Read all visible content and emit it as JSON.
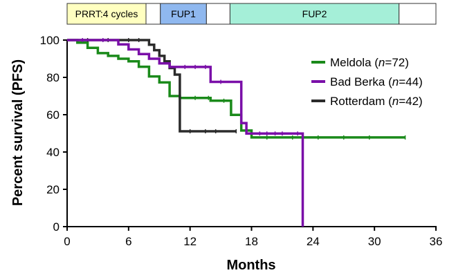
{
  "chart_data": {
    "type": "line",
    "xlabel": "Months",
    "ylabel": "Percent survival (PFS)",
    "xlim": [
      0,
      36
    ],
    "ylim": [
      0,
      100
    ],
    "x_ticks": [
      "0",
      "6",
      "12",
      "18",
      "24",
      "30",
      "36"
    ],
    "y_ticks": [
      "0",
      "20",
      "40",
      "60",
      "80",
      "100"
    ],
    "legend_position": "right",
    "phases": [
      {
        "label": "PRRT:4 cycles",
        "start": 0,
        "end": 7.7,
        "color": "#ffffc0"
      },
      {
        "label": "",
        "start": 7.7,
        "end": 9.1,
        "color": "#ffffff"
      },
      {
        "label": "FUP1",
        "start": 9.1,
        "end": 13.6,
        "color": "#8fb8ef"
      },
      {
        "label": "",
        "start": 13.6,
        "end": 15.9,
        "color": "#ffffff"
      },
      {
        "label": "FUP2",
        "start": 15.9,
        "end": 32.4,
        "color": "#a5efd8"
      },
      {
        "label": "",
        "start": 32.4,
        "end": 36,
        "color": "#ffffff"
      }
    ],
    "series": [
      {
        "name": "Meldola",
        "n_label": "72",
        "color": "#1a8a1a",
        "steps": [
          [
            0,
            100
          ],
          [
            1,
            100
          ],
          [
            1,
            98.6
          ],
          [
            2,
            98.6
          ],
          [
            2,
            95.8
          ],
          [
            3,
            95.8
          ],
          [
            3,
            93
          ],
          [
            4,
            93
          ],
          [
            4,
            91.5
          ],
          [
            5,
            91.5
          ],
          [
            5,
            90
          ],
          [
            6,
            90
          ],
          [
            6,
            88.6
          ],
          [
            7,
            88.6
          ],
          [
            7,
            85.7
          ],
          [
            8,
            85.7
          ],
          [
            8,
            80.5
          ],
          [
            9,
            80.5
          ],
          [
            9,
            77.3
          ],
          [
            10,
            77.3
          ],
          [
            10,
            70
          ],
          [
            11,
            70
          ],
          [
            11,
            69
          ],
          [
            14,
            69
          ],
          [
            14,
            67.5
          ],
          [
            16,
            67.5
          ],
          [
            16,
            59.9
          ],
          [
            17,
            59.9
          ],
          [
            17,
            51.5
          ],
          [
            18,
            51.5
          ],
          [
            18,
            47.8
          ],
          [
            33,
            47.8
          ]
        ],
        "censor": [
          12.5,
          13.8,
          15.3,
          19.5,
          22,
          24.5,
          27,
          29.5,
          33
        ]
      },
      {
        "name": "Bad Berka",
        "n_label": "44",
        "color": "#7a0fa8",
        "steps": [
          [
            0,
            100
          ],
          [
            5,
            100
          ],
          [
            5,
            97.7
          ],
          [
            6,
            97.7
          ],
          [
            6,
            95
          ],
          [
            7,
            95
          ],
          [
            7,
            92.5
          ],
          [
            8,
            92.5
          ],
          [
            8,
            90
          ],
          [
            9,
            90
          ],
          [
            9,
            87.5
          ],
          [
            10,
            87.5
          ],
          [
            10,
            85.6
          ],
          [
            14,
            85.6
          ],
          [
            14,
            77.6
          ],
          [
            17,
            77.6
          ],
          [
            17,
            55.5
          ],
          [
            17.5,
            55.5
          ],
          [
            17.5,
            49.9
          ],
          [
            23,
            49.9
          ],
          [
            23,
            0
          ]
        ],
        "censor": [
          1.5,
          3.5,
          11.5,
          12.5,
          13.5,
          15,
          18.8,
          19.5,
          20.3,
          21,
          22.5
        ]
      },
      {
        "name": "Rotterdam",
        "n_label": "42",
        "color": "#2b2b2b",
        "steps": [
          [
            0,
            100
          ],
          [
            8,
            100
          ],
          [
            8,
            97.5
          ],
          [
            8.5,
            97.5
          ],
          [
            8.5,
            94.6
          ],
          [
            9,
            94.6
          ],
          [
            9,
            91.5
          ],
          [
            9.5,
            91.5
          ],
          [
            9.5,
            88.6
          ],
          [
            10,
            88.6
          ],
          [
            10,
            85
          ],
          [
            10.5,
            85
          ],
          [
            10.5,
            81.5
          ],
          [
            11,
            81.5
          ],
          [
            11,
            51.1
          ],
          [
            16.5,
            51.1
          ]
        ],
        "censor": [
          2,
          4,
          6,
          7,
          12,
          13.5,
          14.5,
          16.5
        ]
      }
    ]
  }
}
